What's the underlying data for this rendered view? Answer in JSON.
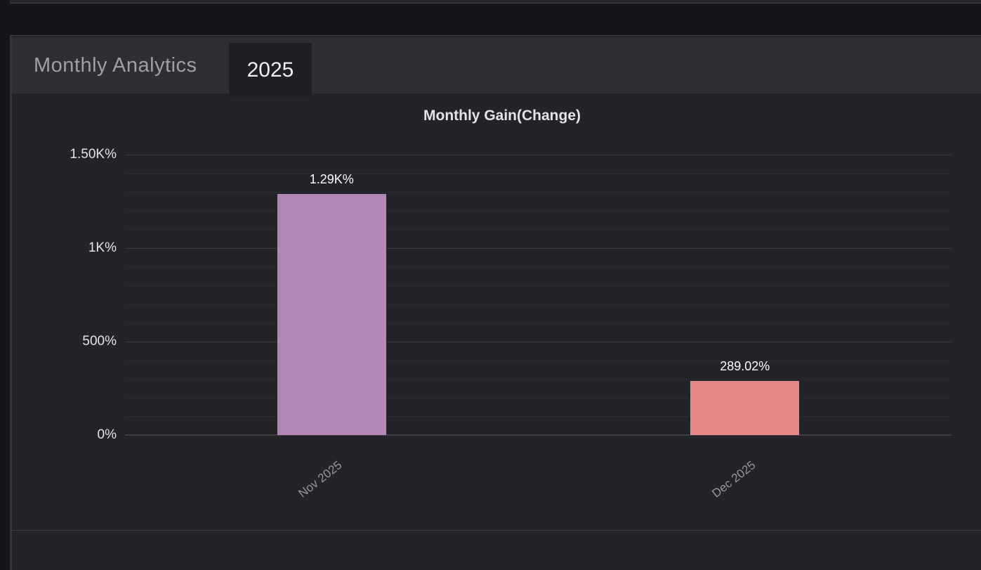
{
  "page": {
    "background": "#15151a"
  },
  "panel": {
    "header": {
      "title": "Monthly Analytics",
      "tab_label": "2025"
    },
    "colors": {
      "panel_bg": "#232328",
      "header_bg": "#2e2e34",
      "tab_bg": "#1f1f24",
      "border": "#35353c"
    }
  },
  "chart_data": {
    "type": "bar",
    "title": "Monthly Gain(Change)",
    "categories": [
      "Nov 2025",
      "Dec 2025"
    ],
    "values": [
      1290,
      289.02
    ],
    "value_labels": [
      "1.29K%",
      "289.02%"
    ],
    "bar_colors": [
      "#b387b7",
      "#e38887"
    ],
    "xlabel": "",
    "ylabel": "",
    "ylim": [
      0,
      1500
    ],
    "y_ticks": [
      {
        "value": 0,
        "label": "0%"
      },
      {
        "value": 500,
        "label": "500%"
      },
      {
        "value": 1000,
        "label": "1K%"
      },
      {
        "value": 1500,
        "label": "1.50K%"
      }
    ],
    "grid_step": 100,
    "grid": true,
    "legend": false,
    "value_label_color": "#fcfcfd",
    "tick_color": "#e4e4e8",
    "category_label_color": "#96969c"
  }
}
